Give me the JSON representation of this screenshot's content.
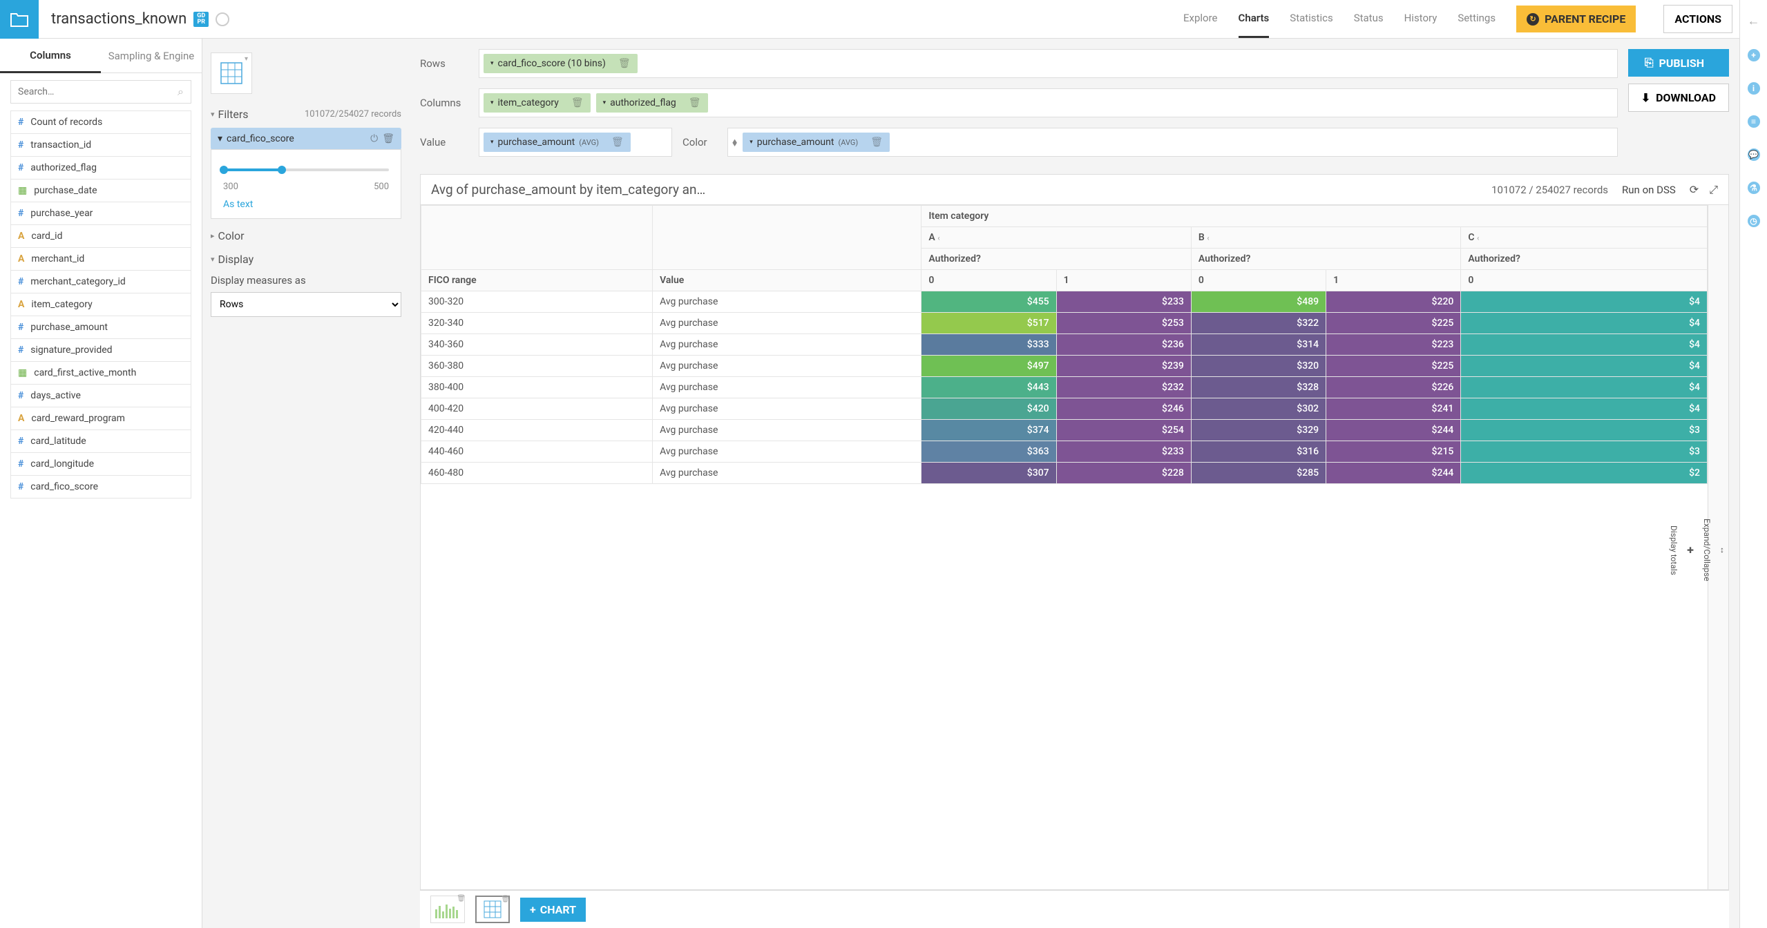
{
  "header": {
    "title": "transactions_known",
    "gdpr": "GD\nPR",
    "nav": [
      "Explore",
      "Charts",
      "Statistics",
      "Status",
      "History",
      "Settings"
    ],
    "nav_active": 1,
    "parent_recipe": "PARENT RECIPE",
    "actions": "ACTIONS"
  },
  "sidebar": {
    "tabs": [
      "Columns",
      "Sampling & Engine"
    ],
    "tab_active": 0,
    "search_placeholder": "Search…",
    "columns": [
      {
        "type": "#",
        "cls": "type-num",
        "name": "Count of records"
      },
      {
        "type": "#",
        "cls": "type-num",
        "name": "transaction_id"
      },
      {
        "type": "#",
        "cls": "type-num",
        "name": "authorized_flag"
      },
      {
        "type": "▦",
        "cls": "type-date",
        "name": "purchase_date"
      },
      {
        "type": "#",
        "cls": "type-num",
        "name": "purchase_year"
      },
      {
        "type": "A",
        "cls": "type-text",
        "name": "card_id"
      },
      {
        "type": "A",
        "cls": "type-text",
        "name": "merchant_id"
      },
      {
        "type": "#",
        "cls": "type-num",
        "name": "merchant_category_id"
      },
      {
        "type": "A",
        "cls": "type-text",
        "name": "item_category"
      },
      {
        "type": "#",
        "cls": "type-num",
        "name": "purchase_amount"
      },
      {
        "type": "#",
        "cls": "type-num",
        "name": "signature_provided"
      },
      {
        "type": "▦",
        "cls": "type-date",
        "name": "card_first_active_month"
      },
      {
        "type": "#",
        "cls": "type-num",
        "name": "days_active"
      },
      {
        "type": "A",
        "cls": "type-text",
        "name": "card_reward_program"
      },
      {
        "type": "#",
        "cls": "type-num",
        "name": "card_latitude"
      },
      {
        "type": "#",
        "cls": "type-num",
        "name": "card_longitude"
      },
      {
        "type": "#",
        "cls": "type-num",
        "name": "card_fico_score"
      }
    ]
  },
  "config": {
    "filters_label": "Filters",
    "filters_records": "101072/254027 records",
    "filter_name": "card_fico_score",
    "slider_min": "300",
    "slider_max": "500",
    "as_text": "As text",
    "color_label": "Color",
    "display_label": "Display",
    "display_measures": "Display measures as",
    "display_value": "Rows"
  },
  "chart": {
    "rows_label": "Rows",
    "rows_pills": [
      {
        "text": "card_fico_score (10 bins)"
      }
    ],
    "cols_label": "Columns",
    "cols_pills": [
      {
        "text": "item_category"
      },
      {
        "text": "authorized_flag"
      }
    ],
    "value_label": "Value",
    "value_pills": [
      {
        "text": "purchase_amount",
        "agg": "(AVG)"
      }
    ],
    "color_label": "Color",
    "color_pills": [
      {
        "text": "purchase_amount",
        "agg": "(AVG)"
      }
    ],
    "publish": "PUBLISH",
    "download": "DOWNLOAD"
  },
  "pivot": {
    "title": "Avg of purchase_amount by item_category an…",
    "records": "101072 / 254027 records",
    "run_on": "Run on DSS",
    "top_header": "Item category",
    "cat_headers": [
      "A",
      "B",
      "C"
    ],
    "auth_header": "Authorized?",
    "row_header": "FICO range",
    "val_header": "Value",
    "subcols": [
      "0",
      "1",
      "0",
      "1",
      "0"
    ],
    "side_expand": "Expand/Collapse",
    "side_totals": "Display totals",
    "rows": [
      {
        "range": "300-320",
        "label": "Avg purchase",
        "vals": [
          {
            "v": "$455",
            "c": "#51b580"
          },
          {
            "v": "$233",
            "c": "#7e5494"
          },
          {
            "v": "$489",
            "c": "#6fc054"
          },
          {
            "v": "$220",
            "c": "#7e5494"
          },
          {
            "v": "$4",
            "c": "#3dafa7"
          }
        ]
      },
      {
        "range": "320-340",
        "label": "Avg purchase",
        "vals": [
          {
            "v": "$517",
            "c": "#94c94d"
          },
          {
            "v": "$253",
            "c": "#7e5494"
          },
          {
            "v": "$322",
            "c": "#6c5b8f"
          },
          {
            "v": "$225",
            "c": "#7e5494"
          },
          {
            "v": "$4",
            "c": "#3dafa7"
          }
        ]
      },
      {
        "range": "340-360",
        "label": "Avg purchase",
        "vals": [
          {
            "v": "$333",
            "c": "#5a7b9e"
          },
          {
            "v": "$236",
            "c": "#7e5494"
          },
          {
            "v": "$314",
            "c": "#6c5b8f"
          },
          {
            "v": "$223",
            "c": "#7e5494"
          },
          {
            "v": "$4",
            "c": "#3dafa7"
          }
        ]
      },
      {
        "range": "360-380",
        "label": "Avg purchase",
        "vals": [
          {
            "v": "$497",
            "c": "#6fc054"
          },
          {
            "v": "$239",
            "c": "#7e5494"
          },
          {
            "v": "$320",
            "c": "#6c5b8f"
          },
          {
            "v": "$225",
            "c": "#7e5494"
          },
          {
            "v": "$4",
            "c": "#3dafa7"
          }
        ]
      },
      {
        "range": "380-400",
        "label": "Avg purchase",
        "vals": [
          {
            "v": "$443",
            "c": "#4cb08a"
          },
          {
            "v": "$232",
            "c": "#7e5494"
          },
          {
            "v": "$328",
            "c": "#6c5b8f"
          },
          {
            "v": "$226",
            "c": "#7e5494"
          },
          {
            "v": "$4",
            "c": "#3dafa7"
          }
        ]
      },
      {
        "range": "400-420",
        "label": "Avg purchase",
        "vals": [
          {
            "v": "$420",
            "c": "#4aa592"
          },
          {
            "v": "$246",
            "c": "#7e5494"
          },
          {
            "v": "$302",
            "c": "#6c5b8f"
          },
          {
            "v": "$241",
            "c": "#7e5494"
          },
          {
            "v": "$4",
            "c": "#3dafa7"
          }
        ]
      },
      {
        "range": "420-440",
        "label": "Avg purchase",
        "vals": [
          {
            "v": "$374",
            "c": "#5889a3"
          },
          {
            "v": "$254",
            "c": "#7e5494"
          },
          {
            "v": "$329",
            "c": "#6c5b8f"
          },
          {
            "v": "$244",
            "c": "#7e5494"
          },
          {
            "v": "$3",
            "c": "#3dafa7"
          }
        ]
      },
      {
        "range": "440-460",
        "label": "Avg purchase",
        "vals": [
          {
            "v": "$363",
            "c": "#5f82a4"
          },
          {
            "v": "$233",
            "c": "#7e5494"
          },
          {
            "v": "$316",
            "c": "#6c5b8f"
          },
          {
            "v": "$215",
            "c": "#7e5494"
          },
          {
            "v": "$3",
            "c": "#3dafa7"
          }
        ]
      },
      {
        "range": "460-480",
        "label": "Avg purchase",
        "vals": [
          {
            "v": "$307",
            "c": "#6c5b8f"
          },
          {
            "v": "$228",
            "c": "#7e5494"
          },
          {
            "v": "$285",
            "c": "#6c5b8f"
          },
          {
            "v": "$244",
            "c": "#7e5494"
          },
          {
            "v": "$2",
            "c": "#3dafa7"
          }
        ]
      }
    ]
  },
  "bottom": {
    "add_chart": "CHART"
  },
  "colors": {
    "primary": "#2aa5dc",
    "accent": "#f9bd38"
  }
}
